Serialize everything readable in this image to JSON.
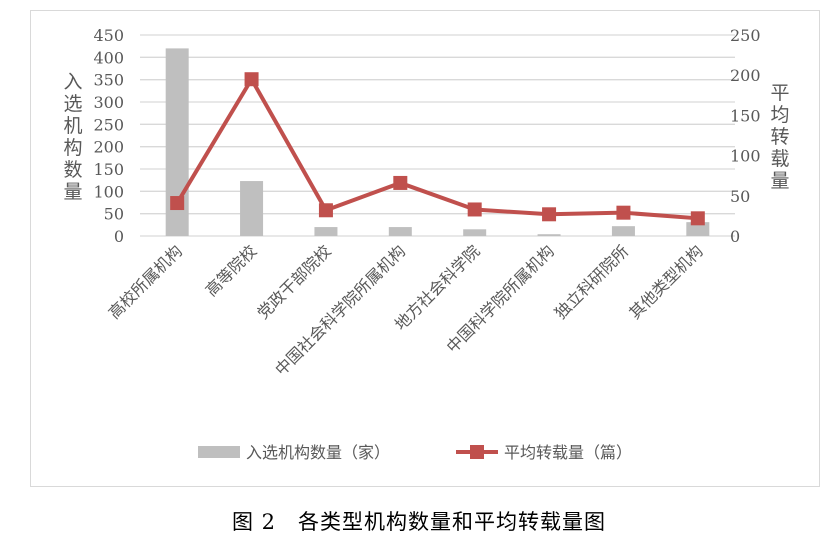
{
  "chart_data": {
    "type": "bar+line",
    "categories": [
      "高校所属机构",
      "高等院校",
      "党政干部院校",
      "中国社会科学院所属机构",
      "地方社会科学院",
      "中国科学院所属机构",
      "独立科研院所",
      "其他类型机构"
    ],
    "series": [
      {
        "name": "入选机构数量（家）",
        "type": "bar",
        "axis": "left",
        "color": "#bfbfbf",
        "values": [
          420,
          123,
          20,
          20,
          15,
          4,
          22,
          31
        ]
      },
      {
        "name": "平均转载量（篇）",
        "type": "line",
        "axis": "right",
        "color": "#c0504d",
        "values": [
          41,
          195,
          32,
          66,
          33,
          27,
          29,
          22
        ]
      }
    ],
    "ylabel": "入选机构数量",
    "y2label": "平均转载量",
    "ylim": [
      0,
      450
    ],
    "yticks": [
      0,
      50,
      100,
      150,
      200,
      250,
      300,
      350,
      400,
      450
    ],
    "y2lim": [
      0,
      250
    ],
    "y2ticks": [
      0,
      50,
      100,
      150,
      200,
      250
    ],
    "grid": true,
    "legend": "bottom"
  },
  "caption": "图 2　各类型机构数量和平均转载量图"
}
